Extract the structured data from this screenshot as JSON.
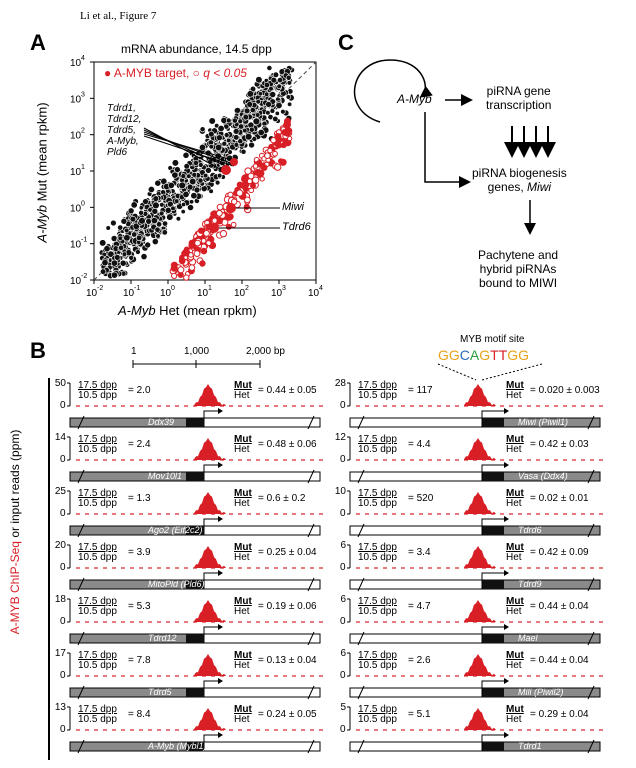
{
  "header": "Li et al., Figure 7",
  "panelA": {
    "letter": "A",
    "title": "mRNA abundance, 14.5 dpp",
    "legend_text": "A-MYB target, ",
    "legend_q": "q < 0.05",
    "xlabel_italic": "A-Myb",
    "xlabel_rest": " Het (mean rpkm)",
    "ylabel_italic": "A-Myb",
    "ylabel_rest": " Mut (mean rpkm)",
    "xticks": [
      "10",
      "10",
      "10",
      "10",
      "10",
      "10",
      "10"
    ],
    "xtick_exp": [
      "-2",
      "-1",
      "0",
      "1",
      "2",
      "3",
      "4"
    ],
    "yticks": [
      "10",
      "10",
      "10",
      "10",
      "10",
      "10",
      "10"
    ],
    "ytick_exp": [
      "-2",
      "-1",
      "0",
      "1",
      "2",
      "3",
      "4"
    ],
    "annot_group": [
      "Tdrd1,",
      "Tdrd12,",
      "Tdrd5,",
      "A-Myb,",
      "Pld6"
    ],
    "annot_miwi": "Miwi",
    "annot_tdrd6": "Tdrd6",
    "colors": {
      "target": "#d81f26",
      "other": "#111111"
    }
  },
  "panelB": {
    "letter": "B",
    "scale": {
      "labels": [
        "1",
        "1,000",
        "2,000"
      ],
      "unit": "bp"
    },
    "ylabel_red": "A-MYB ChIP-Seq",
    "ylabel_black": " or input reads (ppm)",
    "motif_title": "MYB motif site",
    "motif_seq": [
      "G",
      "G",
      "C",
      "A",
      "G",
      "T",
      "T",
      "G",
      "G"
    ],
    "motif_colors": [
      "#e8a317",
      "#e8a317",
      "#2a6ab8",
      "#2e9e3a",
      "#e8a317",
      "#d81f26",
      "#d81f26",
      "#e8a317",
      "#e8a317"
    ],
    "dpp_top": "17.5 dpp",
    "dpp_bot": "10.5 dpp",
    "mut": "Mut",
    "het": "Het",
    "tracks": [
      {
        "ymax": "50",
        "ratio": "2.0",
        "mh": "0.44 ± 0.05",
        "gene": "Ddx39",
        "side": "left"
      },
      {
        "ymax": "28",
        "ratio": "117",
        "mh": "0.020 ± 0.003",
        "gene": "Miwi (Piwil1)",
        "side": "right"
      },
      {
        "ymax": "14",
        "ratio": "2.4",
        "mh": "0.48 ± 0.06",
        "gene": "Mov10l1",
        "side": "left"
      },
      {
        "ymax": "12",
        "ratio": "4.4",
        "mh": "0.42 ± 0.03",
        "gene": "Vasa (Ddx4)",
        "side": "right"
      },
      {
        "ymax": "25",
        "ratio": "1.3",
        "mh": "0.6 ± 0.2",
        "gene": "Ago2 (Eif2c2)",
        "side": "left"
      },
      {
        "ymax": "10",
        "ratio": "520",
        "mh": "0.02 ± 0.01",
        "gene": "Tdrd6",
        "side": "right"
      },
      {
        "ymax": "20",
        "ratio": "3.9",
        "mh": "0.25 ± 0.04",
        "gene": "MitoPld (Pld6)",
        "side": "left"
      },
      {
        "ymax": "6",
        "ratio": "3.4",
        "mh": "0.42 ± 0.09",
        "gene": "Tdrd9",
        "side": "right"
      },
      {
        "ymax": "18",
        "ratio": "5.3",
        "mh": "0.19 ± 0.06",
        "gene": "Tdrd12",
        "side": "left"
      },
      {
        "ymax": "6",
        "ratio": "4.7",
        "mh": "0.44 ± 0.04",
        "gene": "Mael",
        "side": "right"
      },
      {
        "ymax": "17",
        "ratio": "7.8",
        "mh": "0.13 ± 0.04",
        "gene": "Tdrd5",
        "side": "left"
      },
      {
        "ymax": "6",
        "ratio": "2.6",
        "mh": "0.44 ± 0.04",
        "gene": "Mili (Piwil2)",
        "side": "right"
      },
      {
        "ymax": "13",
        "ratio": "8.4",
        "mh": "0.24 ± 0.05",
        "gene": "A-Myb (Mybl1)",
        "side": "left"
      },
      {
        "ymax": "5",
        "ratio": "5.1",
        "mh": "0.29 ± 0.04",
        "gene": "Tdrd1",
        "side": "right"
      }
    ]
  },
  "panelC": {
    "letter": "C",
    "amyb": "A-Myb",
    "pirna_tx": [
      "piRNA gene",
      "transcription"
    ],
    "biogenesis": [
      "piRNA biogenesis",
      "genes, "
    ],
    "miwi": "Miwi",
    "final": [
      "Pachytene and",
      "hybrid piRNAs",
      "bound to MIWI"
    ]
  }
}
